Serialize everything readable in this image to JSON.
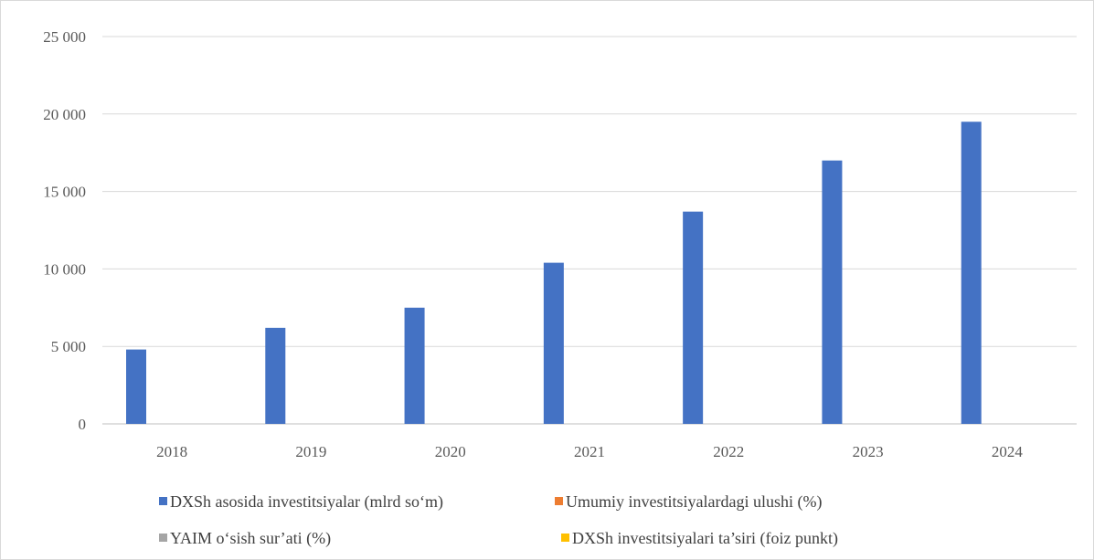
{
  "chart_data": {
    "type": "bar",
    "title": "",
    "xlabel": "",
    "ylabel": "",
    "categories": [
      "2018",
      "2019",
      "2020",
      "2021",
      "2022",
      "2023",
      "2024"
    ],
    "ylim": [
      0,
      25000
    ],
    "yticks": [
      0,
      5000,
      10000,
      15000,
      20000,
      25000
    ],
    "ytick_labels": [
      "0",
      "5 000",
      "10 000",
      "15 000",
      "20 000",
      "25 000"
    ],
    "grid": true,
    "legend_position": "bottom",
    "series": [
      {
        "name": "DXSh asosida investitsiyalar (mlrd so‘m)",
        "color": "#4472c4",
        "values": [
          4800,
          6200,
          7500,
          10400,
          13700,
          17000,
          19500
        ]
      },
      {
        "name": "Umumiy investitsiyalardagi ulushi (%)",
        "color": "#ed7d31",
        "values": [
          null,
          null,
          null,
          null,
          null,
          null,
          null
        ]
      },
      {
        "name": "YAIM o‘sish sur’ati (%)",
        "color": "#a5a5a5",
        "values": [
          null,
          null,
          null,
          null,
          null,
          null,
          null
        ]
      },
      {
        "name": "DXSh investitsiyalari ta’siri (foiz punkt)",
        "color": "#ffc000",
        "values": [
          null,
          null,
          null,
          null,
          null,
          null,
          null
        ]
      }
    ]
  }
}
